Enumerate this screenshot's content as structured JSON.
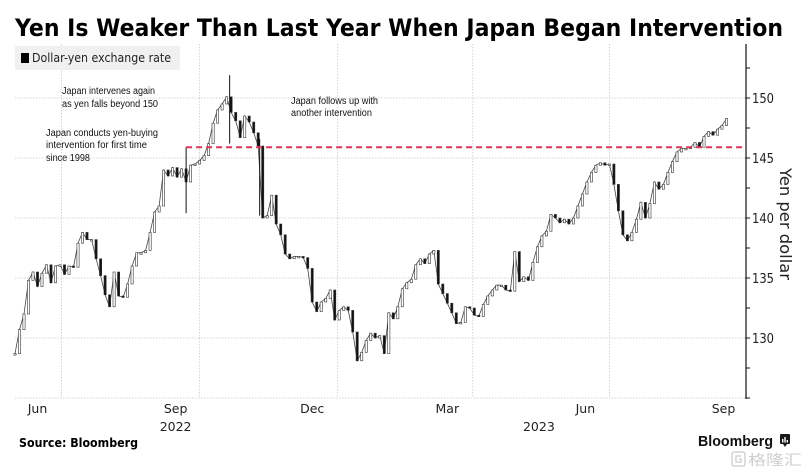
{
  "chart_data": {
    "type": "line",
    "title": "Yen Is Weaker Than Last Year When Japan Began Intervention",
    "xlabel": "",
    "ylabel": "Yen per dollar",
    "xlim": [
      "2022-05-31",
      "2023-09-30"
    ],
    "ylim": [
      125,
      154.5
    ],
    "grid": true,
    "legend": {
      "position": "top-left",
      "entries": [
        {
          "label": "Dollar-yen exchange rate",
          "color": "#000000"
        }
      ]
    },
    "series": [
      {
        "name": "Dollar-yen exchange rate",
        "start_date": "2022-05-31",
        "step_days": 3,
        "values": [
          128.7,
          130.7,
          132.0,
          134.8,
          135.5,
          134.3,
          135.4,
          136.1,
          134.6,
          136.0,
          136.1,
          135.3,
          136.0,
          135.9,
          137.9,
          138.8,
          138.2,
          138.2,
          136.6,
          135.2,
          133.6,
          132.6,
          135.5,
          133.5,
          133.4,
          134.5,
          136.0,
          137.1,
          137.1,
          137.3,
          138.8,
          140.5,
          141.0,
          144.0,
          143.5,
          144.2,
          143.4,
          144.1,
          143.0,
          144.4,
          144.5,
          144.8,
          145.2,
          146.2,
          147.9,
          149.0,
          149.5,
          150.1,
          148.8,
          148.1,
          146.7,
          148.5,
          148.0,
          147.1,
          146.0,
          140.0,
          140.2,
          141.9,
          139.5,
          138.6,
          137.0,
          136.6,
          136.8,
          136.8,
          136.7,
          135.8,
          133.0,
          132.2,
          133.0,
          133.3,
          134.0,
          131.5,
          132.3,
          132.6,
          132.3,
          130.5,
          128.1,
          128.8,
          129.8,
          130.4,
          130.0,
          130.2,
          128.7,
          132.1,
          131.6,
          132.6,
          134.1,
          134.6,
          134.9,
          136.1,
          136.6,
          136.2,
          137.0,
          137.3,
          134.5,
          133.7,
          132.9,
          132.1,
          131.2,
          131.3,
          132.6,
          132.5,
          131.9,
          131.8,
          132.8,
          133.5,
          134.0,
          134.4,
          134.4,
          134.0,
          133.9,
          137.2,
          134.7,
          135.1,
          134.8,
          136.3,
          137.6,
          138.5,
          138.9,
          140.3,
          140.0,
          139.6,
          139.9,
          139.5,
          140.0,
          141.0,
          142.0,
          143.0,
          143.8,
          144.4,
          144.6,
          144.4,
          144.5,
          142.8,
          140.6,
          138.6,
          138.1,
          138.8,
          139.9,
          141.3,
          140.0,
          141.2,
          143.0,
          142.4,
          142.8,
          143.8,
          144.7,
          145.5,
          145.8,
          145.8,
          145.9,
          146.3,
          145.9,
          146.8,
          147.2,
          146.9,
          147.4,
          147.7,
          148.3
        ]
      }
    ],
    "extremes": [
      {
        "date": "2022-09-22",
        "high": 145.9,
        "low": 140.4
      },
      {
        "date": "2022-10-21",
        "high": 151.9,
        "low": 146.2
      },
      {
        "date": "2022-11-10",
        "high": 146.6,
        "low": 140.2
      }
    ],
    "reference_line": {
      "value": 145.9,
      "start_date": "2022-09-22",
      "style": "dashed",
      "color": "#d8365a"
    },
    "yticks": [
      130,
      135,
      140,
      145,
      150
    ],
    "ytick_labels": [
      "130",
      "135",
      "140",
      "145",
      "150"
    ],
    "y_gridlines": [
      125,
      130,
      135,
      140,
      145,
      150
    ],
    "y_minor_ticks": [
      127.5,
      132.5,
      137.5,
      142.5,
      147.5,
      152.5
    ],
    "xticks": [
      {
        "date": "2022-06-15",
        "label": "Jun"
      },
      {
        "date": "2022-09-15",
        "label": "Sep"
      },
      {
        "date": "2022-12-15",
        "label": "Dec"
      },
      {
        "date": "2023-03-15",
        "label": "Mar"
      },
      {
        "date": "2023-06-15",
        "label": "Jun"
      },
      {
        "date": "2023-09-15",
        "label": "Sep"
      }
    ],
    "x_gridlines": [
      "2022-07-01",
      "2022-10-01",
      "2023-01-01",
      "2023-04-01",
      "2023-07-01"
    ],
    "year_labels": [
      {
        "date": "2022-09-15",
        "label": "2022"
      },
      {
        "date": "2023-05-15",
        "label": "2023"
      }
    ],
    "annotations": [
      {
        "lines": [
          "Japan intervenes again",
          "as yen falls beyond 150"
        ]
      },
      {
        "lines": [
          "Japan conducts yen-buying",
          "intervention for first time",
          "since 1998"
        ]
      },
      {
        "lines": [
          "Japan follows up with",
          "another intervention"
        ]
      }
    ],
    "colors": {
      "price_down": "#111111",
      "price_up": "#ffffff",
      "price_outline": "#333333",
      "reference_line": "#d8365a",
      "grid": "#c8c8c8"
    }
  },
  "footer": {
    "source": "Source: Bloomberg",
    "brand": "Bloomberg",
    "watermark": "格隆汇"
  }
}
